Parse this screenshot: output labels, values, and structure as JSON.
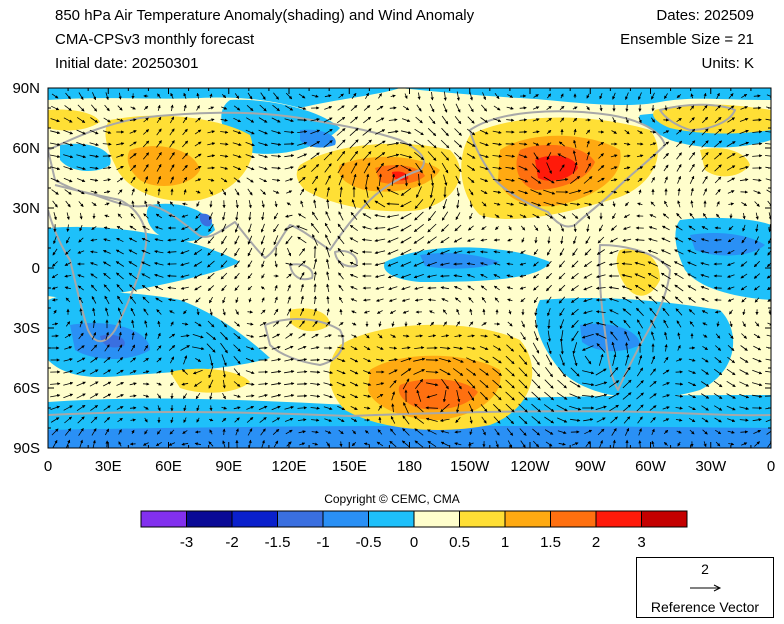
{
  "header": {
    "title": "850 hPa Air Temperature Anomaly(shading) and Wind Anomaly",
    "model": "CMA-CPSv3 monthly forecast",
    "initial": "Initial date: 20250301",
    "dates": "Dates: 202509",
    "ensemble": "Ensemble Size = 21",
    "units": "Units: K"
  },
  "map": {
    "lat_labels": [
      "90N",
      "60N",
      "30N",
      "0",
      "30S",
      "60S",
      "90S"
    ],
    "lon_labels": [
      "0",
      "30E",
      "60E",
      "90E",
      "120E",
      "150E",
      "180",
      "150W",
      "120W",
      "90W",
      "60W",
      "30W",
      "0"
    ]
  },
  "colorbar": {
    "labels": [
      "-3",
      "-2",
      "-1.5",
      "-1",
      "-0.5",
      "0",
      "0.5",
      "1",
      "1.5",
      "2",
      "3"
    ],
    "colors": [
      "#8230ee",
      "#0a0a96",
      "#0a20cc",
      "#3a6fe0",
      "#2a90f5",
      "#1ec0fa",
      "#fffecc",
      "#ffdf35",
      "#ffaa12",
      "#ff7010",
      "#ff1a0a",
      "#c40000"
    ]
  },
  "copyright": "Copyright © CEMC, CMA",
  "reference": {
    "magnitude": "2",
    "label": "Reference Vector"
  }
}
